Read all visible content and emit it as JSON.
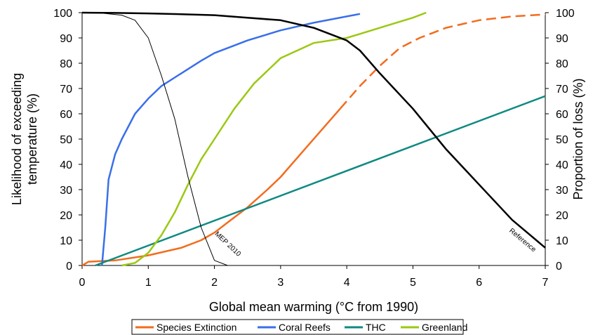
{
  "chart_data": {
    "type": "line",
    "xlabel": "Global mean warming (°C from 1990)",
    "ylabel_left": "Likelihood of exceeding temperature (%)",
    "ylabel_right": "Proportion of loss (%)",
    "xlim": [
      0,
      7
    ],
    "ylim": [
      0,
      100
    ],
    "x_ticks": [
      0,
      1,
      2,
      3,
      4,
      5,
      6,
      7
    ],
    "y_ticks": [
      0,
      10,
      20,
      30,
      40,
      50,
      60,
      70,
      80,
      90,
      100
    ],
    "grid": false,
    "legend_position": "bottom",
    "series": [
      {
        "name": "Species Extinction",
        "color": "#F26C1E",
        "line_style": "solid",
        "dashed_from_x": 3.9,
        "x": [
          0,
          0.1,
          0.5,
          1.0,
          1.5,
          1.8,
          2.0,
          2.2,
          2.5,
          2.8,
          3.0,
          3.3,
          3.6,
          3.9,
          4.2,
          4.5,
          4.8,
          5.1,
          5.5,
          6.0,
          6.5,
          7.0
        ],
        "values": [
          0,
          1.5,
          2,
          4,
          7,
          10,
          13,
          17,
          23,
          30,
          35,
          44,
          53,
          62,
          71,
          79,
          86,
          90,
          94,
          97,
          98.5,
          99.3
        ]
      },
      {
        "name": "Coral Reefs",
        "color": "#3A6FEA",
        "line_style": "solid",
        "x": [
          0.3,
          0.35,
          0.4,
          0.5,
          0.6,
          0.8,
          1.0,
          1.2,
          1.5,
          1.8,
          2.0,
          2.5,
          3.0,
          3.5,
          4.0,
          4.2
        ],
        "values": [
          0,
          15,
          34,
          44,
          50,
          60,
          66,
          71,
          76,
          81,
          84,
          89,
          93,
          96,
          98.5,
          99.5
        ]
      },
      {
        "name": "THC",
        "color": "#0E8A82",
        "line_style": "solid",
        "x": [
          0.2,
          7.0
        ],
        "values": [
          0,
          67
        ]
      },
      {
        "name": "Greenland",
        "color": "#9BC813",
        "line_style": "solid",
        "x": [
          0.6,
          0.8,
          1.0,
          1.2,
          1.4,
          1.6,
          1.8,
          2.0,
          2.3,
          2.6,
          3.0,
          3.5,
          4.0,
          4.5,
          5.0,
          5.2
        ],
        "values": [
          0,
          1,
          5,
          12,
          21,
          32,
          42,
          50,
          62,
          72,
          82,
          88,
          90,
          94,
          98,
          100
        ]
      },
      {
        "name": "Reference",
        "color": "#000000",
        "line_style": "solid",
        "legend": false,
        "annotation": "Reference",
        "x": [
          0,
          0.5,
          1.0,
          1.5,
          2.0,
          2.5,
          3.0,
          3.5,
          4.0,
          4.2,
          4.5,
          5.0,
          5.5,
          6.0,
          6.5,
          7.0
        ],
        "values": [
          100,
          99.9,
          99.7,
          99.4,
          99,
          98,
          97,
          94,
          89,
          85,
          76,
          62,
          46,
          32,
          18,
          7
        ]
      },
      {
        "name": "MEP 2010",
        "color": "#000000",
        "line_style": "thin",
        "legend": false,
        "annotation": "MEP 2010",
        "x": [
          0,
          0.3,
          0.6,
          0.8,
          1.0,
          1.2,
          1.4,
          1.6,
          1.8,
          2.0,
          2.2
        ],
        "values": [
          100,
          99.8,
          99,
          97,
          90,
          75,
          58,
          35,
          15,
          2,
          0
        ]
      }
    ]
  }
}
